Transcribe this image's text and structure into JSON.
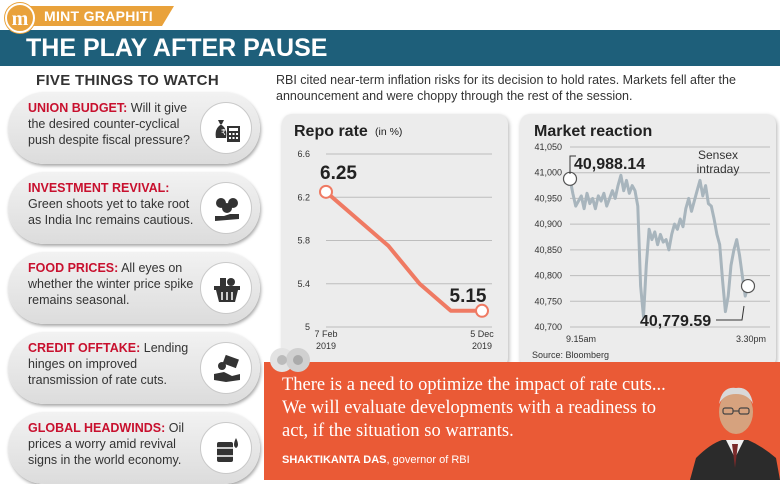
{
  "header": {
    "logo_letter": "m",
    "kicker": "MINT GRAPHITI",
    "title": "THE PLAY AFTER PAUSE"
  },
  "left": {
    "heading": "FIVE THINGS TO WATCH",
    "items": [
      {
        "head": "UNION BUDGET:",
        "text": " Will it give the desired counter-cyclical push despite fiscal pressure?",
        "icon": "money-bag-calculator-icon"
      },
      {
        "head": "INVESTMENT REVIVAL:",
        "text": " Green shoots yet to take root as India Inc remains cautious.",
        "icon": "money-bags-hand-icon"
      },
      {
        "head": "FOOD PRICES:",
        "text": " All eyes on whether the winter price spike remains seasonal.",
        "icon": "food-basket-icon"
      },
      {
        "head": "CREDIT OFFTAKE:",
        "text": " Lending hinges on improved transmission of rate cuts.",
        "icon": "hand-giving-money-icon"
      },
      {
        "head": "GLOBAL HEADWINDS:",
        "text": " Oil prices a worry amid revival signs in the world economy.",
        "icon": "oil-barrel-icon"
      }
    ]
  },
  "intro": "RBI cited near-term inflation risks for its decision to hold rates. Markets fell after the announcement and were choppy through the rest of the session.",
  "colors": {
    "accent_orange": "#e9a23b",
    "title_blue": "#1e5f7a",
    "red_head": "#c8102e",
    "line_salmon": "#ef7a63",
    "quote_orange": "#ea5a36",
    "sensex_gray": "#a8b5bd"
  },
  "chart_data": [
    {
      "type": "line",
      "title": "Repo rate",
      "unit_note": "(in %)",
      "categories": [
        "7 Feb 2019",
        "",
        "",
        "",
        "",
        "5 Dec 2019"
      ],
      "x_labels": [
        {
          "line1": "7 Feb",
          "line2": "2019"
        },
        {
          "line1": "5 Dec",
          "line2": "2019"
        }
      ],
      "values": [
        6.25,
        6.0,
        5.75,
        5.4,
        5.15,
        5.15
      ],
      "start_label": "6.25",
      "end_label": "5.15",
      "ylim": [
        5,
        6.6
      ],
      "y_ticks": [
        "6.6",
        "6.2",
        "5.8",
        "5.4",
        "5"
      ],
      "grid": true
    },
    {
      "type": "line",
      "title": "Market reaction",
      "series_label": "Sensex intraday",
      "series_label_lines": [
        "Sensex",
        "intraday"
      ],
      "xlabel_start": "9.15am",
      "xlabel_end": "3.30pm",
      "start_label": "40,988.14",
      "end_label": "40,779.59",
      "start_value": 40988.14,
      "end_value": 40779.59,
      "ylim": [
        40700,
        41050
      ],
      "y_ticks": [
        "41,050",
        "41,000",
        "40,950",
        "40,900",
        "40,850",
        "40,800",
        "40,750",
        "40,700"
      ],
      "values": [
        40988.14,
        40960,
        40935,
        40945,
        40955,
        40930,
        40960,
        40940,
        40950,
        40930,
        40955,
        40945,
        40960,
        40935,
        40950,
        40965,
        40950,
        40975,
        40995,
        40965,
        40985,
        40960,
        40975,
        40965,
        40935,
        40780,
        40720,
        40820,
        40890,
        40870,
        40885,
        40860,
        40880,
        40865,
        40870,
        40850,
        40880,
        40900,
        40890,
        40910,
        40895,
        40930,
        40950,
        40925,
        40945,
        40965,
        40985,
        40955,
        40975,
        40940,
        40935,
        40910,
        40880,
        40860,
        40790,
        40730,
        40760,
        40820,
        40850,
        40870,
        40840,
        40800,
        40760,
        40779.59
      ],
      "source": "Source: Bloomberg"
    }
  ],
  "quote": {
    "text": "There is a need to optimize the impact of rate cuts... We will evaluate developments with a readiness to act, if the situation so warrants.",
    "speaker": "SHAKTIKANTA DAS",
    "role": ", governor of RBI"
  }
}
